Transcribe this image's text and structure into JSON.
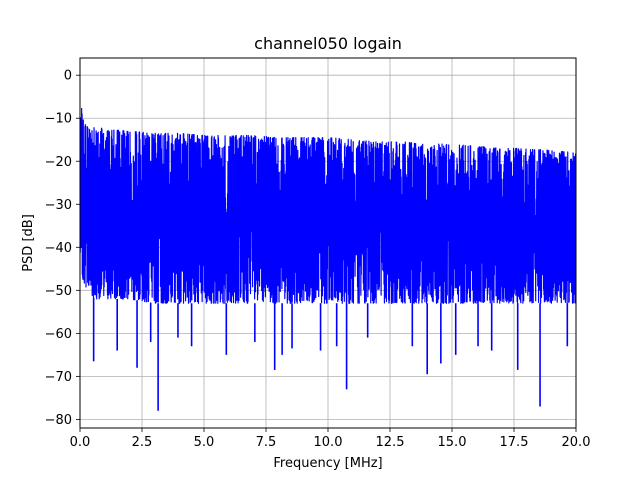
{
  "chart_data": {
    "type": "line",
    "title": "channel050 logain",
    "xlabel": "Frequency [MHz]",
    "ylabel": "PSD [dB]",
    "xlim": [
      0,
      20
    ],
    "ylim": [
      -82,
      4
    ],
    "grid": true,
    "x_ticks": [
      0.0,
      2.5,
      5.0,
      7.5,
      10.0,
      12.5,
      15.0,
      17.5,
      20.0
    ],
    "x_tick_labels": [
      "0.0",
      "2.5",
      "5.0",
      "7.5",
      "10.0",
      "12.5",
      "15.0",
      "17.5",
      "20.0"
    ],
    "y_ticks": [
      0,
      -10,
      -20,
      -30,
      -40,
      -50,
      -60,
      -70,
      -80
    ],
    "y_tick_labels": [
      "0",
      "−10",
      "−20",
      "−30",
      "−40",
      "−50",
      "−60",
      "−70",
      "−80"
    ],
    "series": [
      {
        "color": "#0000ff",
        "envelope": {
          "x": [
            0.0,
            0.05,
            0.15,
            0.3,
            0.6,
            1.0,
            2.0,
            3.0,
            4.0,
            5.0,
            6.0,
            7.0,
            8.0,
            9.0,
            10.0,
            11.0,
            12.0,
            13.0,
            14.0,
            15.0,
            16.0,
            17.0,
            18.0,
            19.0,
            20.0
          ],
          "upper": [
            -3,
            -7,
            -11,
            -12,
            -12,
            -12.5,
            -13,
            -13.5,
            -13.5,
            -14,
            -14,
            -14,
            -14.5,
            -14.5,
            -14.5,
            -15,
            -15.5,
            -15.5,
            -16,
            -16,
            -16.5,
            -17,
            -17,
            -17.5,
            -18
          ],
          "lower": [
            -42,
            -46,
            -48,
            -50,
            -52,
            -52,
            -52,
            -53,
            -53,
            -53,
            -53,
            -53,
            -53,
            -53,
            -53,
            -53,
            -53,
            -53,
            -53,
            -53,
            -53,
            -53,
            -53,
            -53,
            -53
          ]
        },
        "spikes": [
          {
            "x": 0.55,
            "y": -66.5
          },
          {
            "x": 1.5,
            "y": -64
          },
          {
            "x": 2.3,
            "y": -68
          },
          {
            "x": 2.85,
            "y": -62
          },
          {
            "x": 3.15,
            "y": -78
          },
          {
            "x": 3.95,
            "y": -61
          },
          {
            "x": 4.5,
            "y": -63
          },
          {
            "x": 5.9,
            "y": -65
          },
          {
            "x": 7.05,
            "y": -62
          },
          {
            "x": 7.85,
            "y": -68.5
          },
          {
            "x": 8.15,
            "y": -65
          },
          {
            "x": 8.55,
            "y": -63.5
          },
          {
            "x": 9.7,
            "y": -64
          },
          {
            "x": 10.35,
            "y": -63
          },
          {
            "x": 10.75,
            "y": -73
          },
          {
            "x": 11.6,
            "y": -61
          },
          {
            "x": 13.4,
            "y": -63
          },
          {
            "x": 14.0,
            "y": -69.5
          },
          {
            "x": 14.55,
            "y": -67
          },
          {
            "x": 15.15,
            "y": -65
          },
          {
            "x": 16.05,
            "y": -63
          },
          {
            "x": 16.6,
            "y": -64
          },
          {
            "x": 17.65,
            "y": -68.5
          },
          {
            "x": 18.55,
            "y": -77
          },
          {
            "x": 19.65,
            "y": -63
          }
        ]
      }
    ]
  }
}
